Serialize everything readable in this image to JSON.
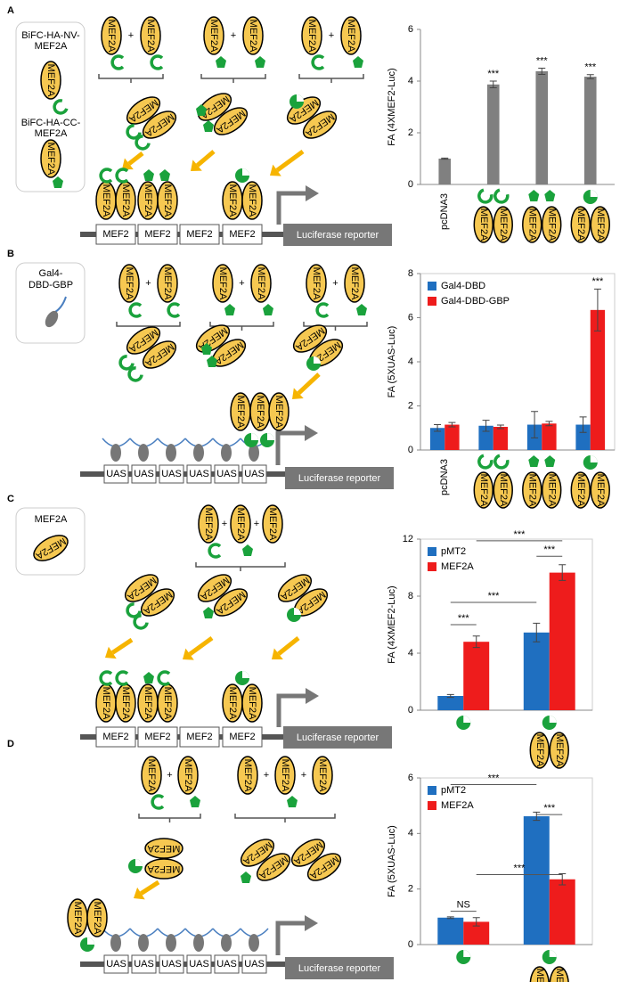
{
  "panel_labels": [
    "A",
    "B",
    "C",
    "D"
  ],
  "diagram_text": {
    "protein": "MEF2A",
    "plus": "+",
    "site_mef2": "MEF2",
    "site_uas": "UAS",
    "reporter": "Luciferase reporter",
    "legend_a": [
      [
        "BiFC-HA-NV-",
        "MEF2A"
      ],
      [
        "BiFC-HA-CC-",
        "MEF2A"
      ]
    ],
    "legend_b": [
      "Gal4-",
      "DBD-GBP"
    ],
    "legend_c": "MEF2A"
  },
  "chart_data": [
    {
      "type": "bar",
      "ylabel": "FA (4XMEF2-Luc)",
      "categories": [
        "pcDNA3",
        null,
        null,
        null
      ],
      "values": [
        1,
        3.87,
        4.38,
        4.17
      ],
      "errors": [
        0.02,
        0.13,
        0.12,
        0.08
      ],
      "annotations": [
        null,
        "***",
        "***",
        "***"
      ],
      "color": "#808080",
      "ylim": [
        0,
        6
      ],
      "yticks": [
        0,
        2,
        4,
        6
      ],
      "frame": false
    },
    {
      "type": "bar",
      "ylabel": "FA (5XUAS-Luc)",
      "categories": [
        "pcDNA3",
        null,
        null,
        null
      ],
      "series": [
        {
          "name": "Gal4-DBD",
          "color": "#1f6fc0",
          "values": [
            1.0,
            1.1,
            1.15,
            1.15
          ],
          "errors": [
            0.15,
            0.25,
            0.6,
            0.35
          ]
        },
        {
          "name": "Gal4-DBD-GBP",
          "color": "#ee1c1c",
          "values": [
            1.15,
            1.05,
            1.2,
            6.35
          ],
          "errors": [
            0.1,
            0.08,
            0.1,
            0.95
          ],
          "annotations": [
            null,
            null,
            null,
            "***"
          ]
        }
      ],
      "ylim": [
        0,
        8
      ],
      "yticks": [
        0,
        2,
        4,
        6,
        8
      ],
      "frame": true,
      "legend": "upper left"
    },
    {
      "type": "bar",
      "ylabel": "FA (4XMEF2-Luc)",
      "categories": [
        null,
        null
      ],
      "series": [
        {
          "name": "pMT2",
          "color": "#1f6fc0",
          "values": [
            1.0,
            5.45
          ],
          "errors": [
            0.1,
            0.65
          ]
        },
        {
          "name": "MEF2A",
          "color": "#ee1c1c",
          "values": [
            4.8,
            9.65
          ],
          "errors": [
            0.4,
            0.55
          ]
        }
      ],
      "ylim": [
        0,
        12
      ],
      "yticks": [
        0,
        4,
        8,
        12
      ],
      "frame": true,
      "legend": "upper left",
      "brackets": [
        "***",
        "***",
        "***",
        "***"
      ]
    },
    {
      "type": "bar",
      "ylabel": "FA (5XUAS-Luc)",
      "categories": [
        null,
        null
      ],
      "series": [
        {
          "name": "pMT2",
          "color": "#1f6fc0",
          "values": [
            0.97,
            4.62
          ],
          "errors": [
            0.03,
            0.15
          ]
        },
        {
          "name": "MEF2A",
          "color": "#ee1c1c",
          "values": [
            0.82,
            2.35
          ],
          "errors": [
            0.15,
            0.2
          ]
        }
      ],
      "ylim": [
        0,
        6
      ],
      "yticks": [
        0,
        2,
        4,
        6
      ],
      "frame": true,
      "legend": "upper left",
      "brackets": [
        "NS",
        "***",
        "***",
        "***"
      ]
    }
  ]
}
